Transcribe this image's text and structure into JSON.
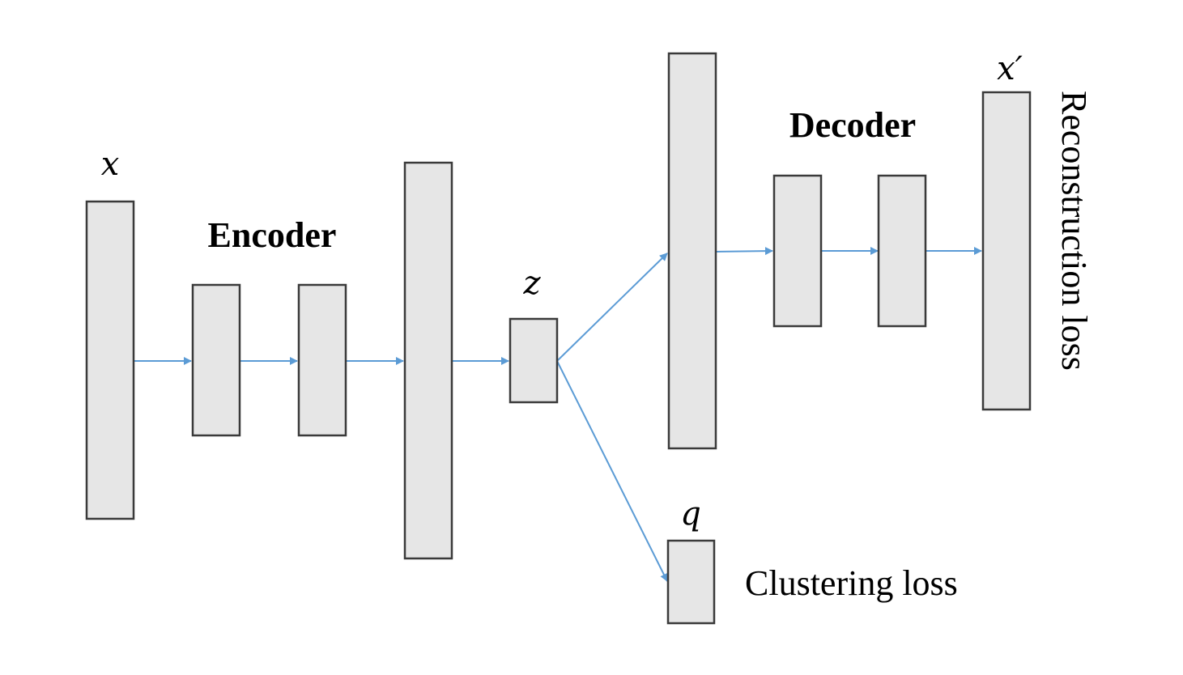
{
  "diagram": {
    "type": "autoencoder-clustering-architecture",
    "colors": {
      "layer_fill": "#e6e6e6",
      "layer_stroke": "#3a3a3a",
      "arrow": "#5b9bd5",
      "text": "#000000"
    },
    "labels": {
      "input": "x",
      "latent": "z",
      "output": "x′",
      "soft_assignment": "q",
      "encoder": "Encoder",
      "decoder": "Decoder",
      "reconstruction_loss": "Reconstruction loss",
      "clustering_loss": "Clustering loss"
    },
    "encoder_layers": [
      "input-x",
      "encoder-hidden-1",
      "encoder-hidden-2",
      "encoder-hidden-3"
    ],
    "decoder_layers": [
      "decoder-hidden-1",
      "decoder-hidden-2",
      "decoder-hidden-3",
      "output-x-prime"
    ],
    "edges": [
      {
        "from": "input-x",
        "to": "encoder-hidden-1"
      },
      {
        "from": "encoder-hidden-1",
        "to": "encoder-hidden-2"
      },
      {
        "from": "encoder-hidden-2",
        "to": "encoder-hidden-3"
      },
      {
        "from": "encoder-hidden-3",
        "to": "latent-z"
      },
      {
        "from": "latent-z",
        "to": "decoder-hidden-1"
      },
      {
        "from": "latent-z",
        "to": "cluster-q"
      },
      {
        "from": "decoder-hidden-1",
        "to": "decoder-hidden-2"
      },
      {
        "from": "decoder-hidden-2",
        "to": "decoder-hidden-3"
      },
      {
        "from": "decoder-hidden-3",
        "to": "output-x-prime"
      }
    ]
  }
}
